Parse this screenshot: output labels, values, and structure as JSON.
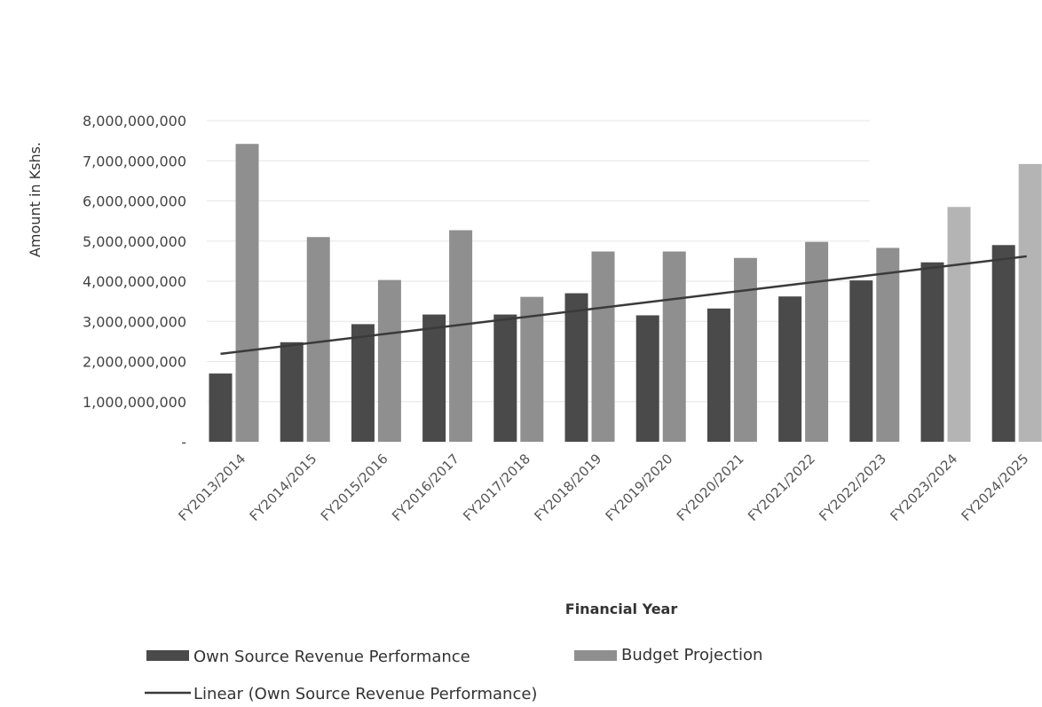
{
  "chart_data": {
    "type": "bar",
    "categories": [
      "FY2013/2014",
      "FY2014/2015",
      "FY2015/2016",
      "FY2016/2017",
      "FY2017/2018",
      "FY2018/2019",
      "FY2019/2020",
      "FY2020/2021",
      "FY2021/2022",
      "FY2022/2023",
      "FY2023/2024",
      "FY2024/2025"
    ],
    "series": [
      {
        "name": "Own Source Revenue Performance",
        "color": "#4a4a4a",
        "values": [
          1700000000,
          2480000000,
          2930000000,
          3170000000,
          3170000000,
          3700000000,
          3150000000,
          3320000000,
          3620000000,
          4020000000,
          4470000000,
          4900000000
        ]
      },
      {
        "name": "Budget Projection",
        "color": "#8f8f8f",
        "values": [
          7420000000,
          5100000000,
          4030000000,
          5270000000,
          3610000000,
          4740000000,
          4740000000,
          4580000000,
          4980000000,
          4830000000,
          5850000000,
          6920000000
        ]
      }
    ],
    "trendline": {
      "name": "Linear (Own Source Revenue Performance)",
      "color": "#3a3a3a",
      "start": 2190000000,
      "end": 4620000000
    },
    "xlabel": "Financial Year",
    "ylabel": "Amount in Kshs.",
    "ylim": [
      0,
      8000000000
    ],
    "yticks": [
      "-",
      "1,000,000,000",
      "2,000,000,000",
      "3,000,000,000",
      "4,000,000,000",
      "5,000,000,000",
      "6,000,000,000",
      "7,000,000,000",
      "8,000,000,000"
    ],
    "grid": true,
    "legend_position": "bottom-left"
  },
  "legend": {
    "own_source": "Own Source Revenue Performance",
    "budget": "Budget Projection",
    "linear": "Linear (Own Source Revenue Performance)"
  }
}
